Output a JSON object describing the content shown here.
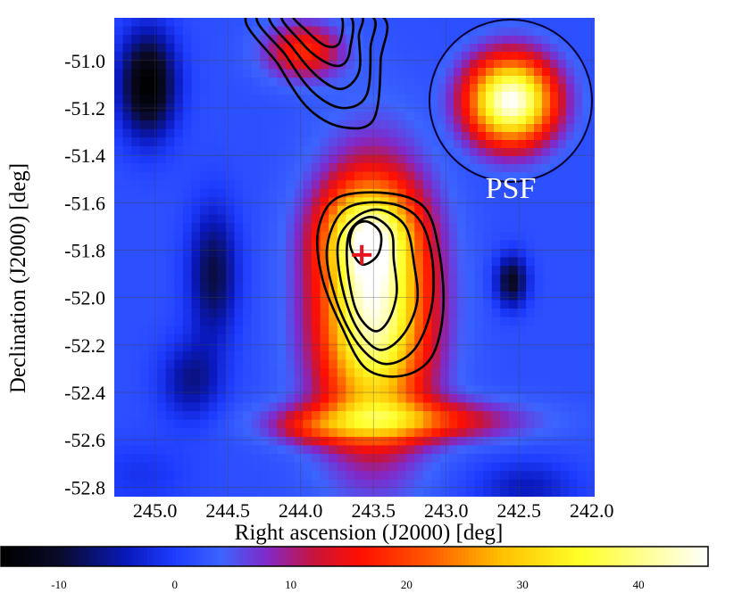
{
  "chart_data": {
    "type": "heatmap",
    "title": "",
    "xlabel": "Right ascension (J2000) [deg]",
    "ylabel": "Declination (J2000) [deg]",
    "x_reversed": true,
    "xlim": [
      245.28,
      241.98
    ],
    "ylim": [
      -52.84,
      -50.82
    ],
    "xticks": [
      "245.0",
      "244.5",
      "244.0",
      "243.5",
      "243.0",
      "242.5",
      "242.0"
    ],
    "xtick_values": [
      245.0,
      244.5,
      244.0,
      243.5,
      243.0,
      242.5,
      242.0
    ],
    "yticks": [
      "-51.0",
      "-51.2",
      "-51.4",
      "-51.6",
      "-51.8",
      "-52.0",
      "-52.2",
      "-52.4",
      "-52.6",
      "-52.8"
    ],
    "ytick_values": [
      -51.0,
      -51.2,
      -51.4,
      -51.6,
      -51.8,
      -52.0,
      -52.2,
      -52.4,
      -52.6,
      -52.8
    ],
    "grid": true,
    "colorbar": {
      "range": [
        -15,
        46
      ],
      "ticks": [
        "-10",
        "0",
        "10",
        "20",
        "30",
        "40"
      ],
      "tick_values": [
        -10,
        0,
        10,
        20,
        30,
        40
      ]
    },
    "psf_label": "PSF",
    "marker": {
      "symbol": "+",
      "ra": 243.58,
      "dec": -51.82,
      "color": "#e8151e"
    },
    "blobs": [
      {
        "ra": 243.5,
        "dec": -52.05,
        "sra": 0.26,
        "sdec": 0.36,
        "amp": 42
      },
      {
        "ra": 243.55,
        "dec": -51.72,
        "sra": 0.22,
        "sdec": 0.14,
        "amp": 18
      },
      {
        "ra": 243.3,
        "dec": -52.52,
        "sra": 0.5,
        "sdec": 0.06,
        "amp": 18
      },
      {
        "ra": 243.9,
        "dec": -52.55,
        "sra": 0.2,
        "sdec": 0.05,
        "amp": 8
      },
      {
        "ra": 243.98,
        "dec": -50.96,
        "sra": 0.18,
        "sdec": 0.08,
        "amp": 16
      },
      {
        "ra": 245.05,
        "dec": -51.1,
        "sra": 0.14,
        "sdec": 0.16,
        "amp": -17
      },
      {
        "ra": 244.6,
        "dec": -51.9,
        "sra": 0.12,
        "sdec": 0.2,
        "amp": -11
      },
      {
        "ra": 244.75,
        "dec": -52.35,
        "sra": 0.15,
        "sdec": 0.12,
        "amp": -8
      },
      {
        "ra": 242.55,
        "dec": -51.93,
        "sra": 0.08,
        "sdec": 0.08,
        "amp": -13
      },
      {
        "ra": 242.45,
        "dec": -52.8,
        "sra": 0.25,
        "sdec": 0.08,
        "amp": -6
      },
      {
        "ra": 245.1,
        "dec": -52.75,
        "sra": 0.25,
        "sdec": 0.1,
        "amp": -3
      }
    ],
    "contours": [
      {
        "name": "source-contour",
        "rings": [
          [
            [
              243.4,
              -51.56
            ],
            [
              243.15,
              -51.62
            ],
            [
              243.05,
              -51.8
            ],
            [
              243.02,
              -52.05
            ],
            [
              243.1,
              -52.25
            ],
            [
              243.3,
              -52.33
            ],
            [
              243.55,
              -52.3
            ],
            [
              243.72,
              -52.12
            ],
            [
              243.85,
              -51.92
            ],
            [
              243.88,
              -51.72
            ],
            [
              243.75,
              -51.58
            ]
          ],
          [
            [
              243.42,
              -51.6
            ],
            [
              243.2,
              -51.66
            ],
            [
              243.1,
              -51.82
            ],
            [
              243.1,
              -52.04
            ],
            [
              243.22,
              -52.22
            ],
            [
              243.42,
              -52.28
            ],
            [
              243.6,
              -52.2
            ],
            [
              243.75,
              -52.02
            ],
            [
              243.82,
              -51.8
            ],
            [
              243.7,
              -51.63
            ]
          ],
          [
            [
              243.45,
              -51.63
            ],
            [
              243.28,
              -51.7
            ],
            [
              243.22,
              -51.86
            ],
            [
              243.2,
              -52.02
            ],
            [
              243.3,
              -52.16
            ],
            [
              243.46,
              -52.22
            ],
            [
              243.62,
              -52.12
            ],
            [
              243.72,
              -51.94
            ],
            [
              243.74,
              -51.76
            ],
            [
              243.62,
              -51.66
            ]
          ],
          [
            [
              243.52,
              -51.66
            ],
            [
              243.38,
              -51.72
            ],
            [
              243.36,
              -51.84
            ],
            [
              243.34,
              -51.98
            ],
            [
              243.4,
              -52.1
            ],
            [
              243.5,
              -52.14
            ],
            [
              243.62,
              -52.05
            ],
            [
              243.68,
              -51.86
            ],
            [
              243.66,
              -51.72
            ]
          ],
          [
            [
              243.54,
              -51.68
            ],
            [
              243.45,
              -51.73
            ],
            [
              243.47,
              -51.82
            ],
            [
              243.58,
              -51.86
            ],
            [
              243.66,
              -51.78
            ],
            [
              243.63,
              -51.7
            ]
          ]
        ]
      },
      {
        "name": "north-contour",
        "rings": [
          [
            [
              244.35,
              -50.8
            ],
            [
              244.15,
              -51.02
            ],
            [
              243.95,
              -51.2
            ],
            [
              243.72,
              -51.28
            ],
            [
              243.5,
              -51.25
            ],
            [
              243.45,
              -51.0
            ],
            [
              243.48,
              -50.8
            ]
          ],
          [
            [
              244.28,
              -50.8
            ],
            [
              244.1,
              -50.98
            ],
            [
              243.92,
              -51.13
            ],
            [
              243.72,
              -51.2
            ],
            [
              243.55,
              -51.15
            ],
            [
              243.52,
              -50.95
            ],
            [
              243.55,
              -50.8
            ]
          ],
          [
            [
              244.2,
              -50.8
            ],
            [
              244.05,
              -50.95
            ],
            [
              243.88,
              -51.07
            ],
            [
              243.72,
              -51.12
            ],
            [
              243.6,
              -51.05
            ],
            [
              243.6,
              -50.9
            ],
            [
              243.62,
              -50.8
            ]
          ],
          [
            [
              244.12,
              -50.8
            ],
            [
              244.0,
              -50.92
            ],
            [
              243.85,
              -51.0
            ],
            [
              243.72,
              -51.02
            ],
            [
              243.66,
              -50.95
            ],
            [
              243.68,
              -50.8
            ]
          ],
          [
            [
              244.05,
              -50.8
            ],
            [
              243.95,
              -50.88
            ],
            [
              243.82,
              -50.94
            ],
            [
              243.73,
              -50.92
            ],
            [
              243.74,
              -50.8
            ]
          ]
        ]
      }
    ]
  }
}
